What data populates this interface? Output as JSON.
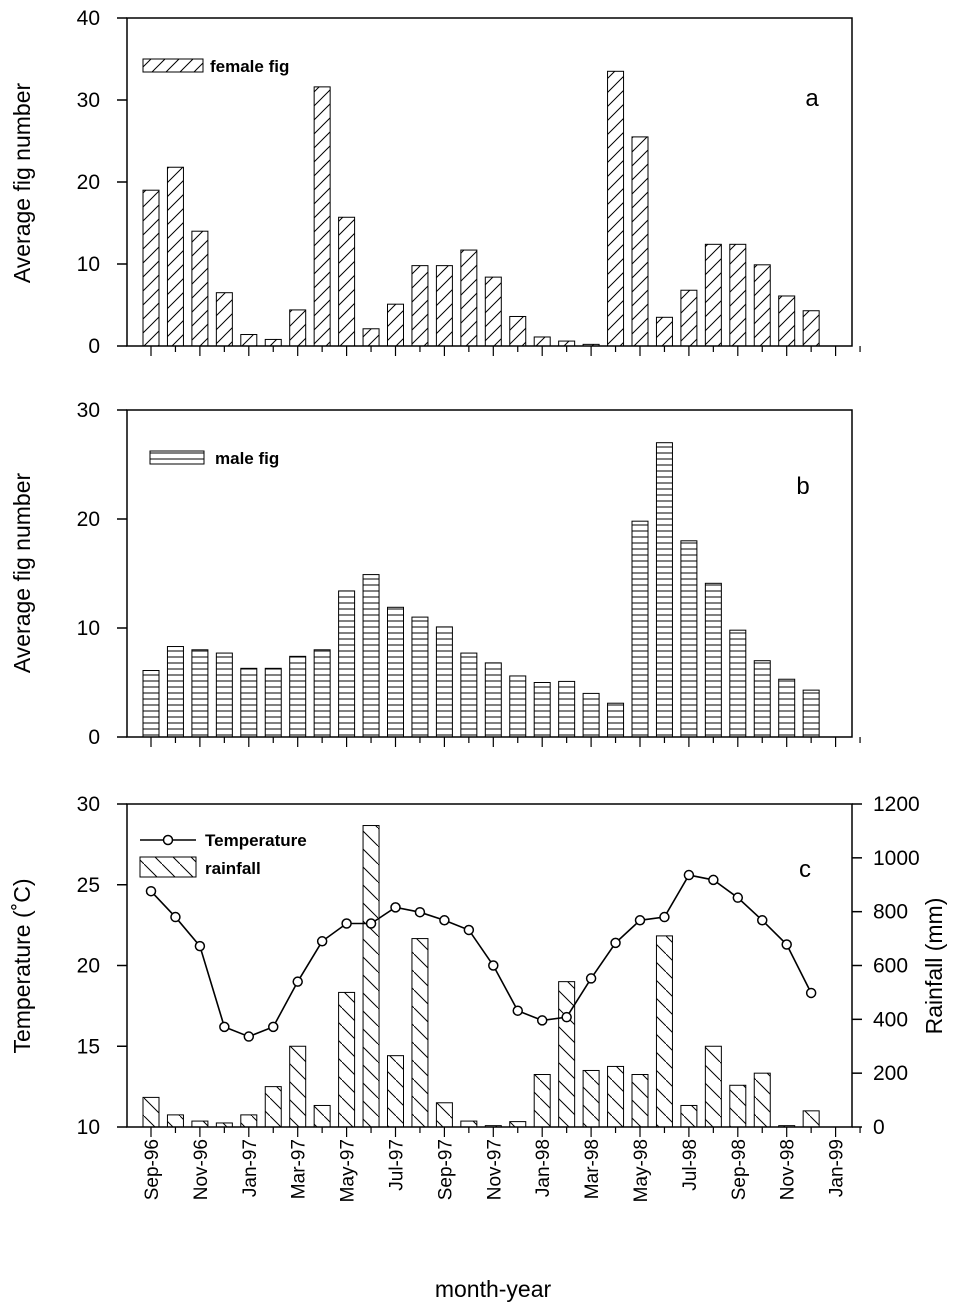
{
  "xlabel": "month-year",
  "tick_labels": [
    "Sep-96",
    "Nov-96",
    "Jan-97",
    "Mar-97",
    "May-97",
    "Jul-97",
    "Sep-97",
    "Nov-97",
    "Jan-98",
    "Mar-98",
    "May-98",
    "Jul-98",
    "Sep-98",
    "Nov-98",
    "Jan-99"
  ],
  "chart_data": [
    {
      "type": "bar",
      "panel": "a",
      "ylabel": "Average fig number",
      "ylim": [
        0,
        40
      ],
      "yticks": [
        0,
        10,
        20,
        30,
        40
      ],
      "series": [
        {
          "name": "female fig",
          "pattern": "diagonal-hatch",
          "values": [
            19,
            21.8,
            14,
            6.5,
            1.4,
            0.8,
            4.4,
            31.6,
            15.7,
            2.1,
            5.1,
            9.8,
            9.8,
            11.7,
            8.4,
            3.6,
            1.1,
            0.6,
            0.2,
            33.5,
            25.5,
            3.5,
            6.8,
            12.4,
            12.4,
            9.9,
            6.1,
            4.3
          ]
        }
      ]
    },
    {
      "type": "bar",
      "panel": "b",
      "ylabel": "Average fig number",
      "ylim": [
        0,
        30
      ],
      "yticks": [
        0,
        10,
        20,
        30
      ],
      "series": [
        {
          "name": "male fig",
          "pattern": "horizontal-lines",
          "values": [
            6.1,
            8.3,
            8,
            7.7,
            6.3,
            6.3,
            7.4,
            8,
            13.4,
            14.9,
            11.9,
            11,
            10.1,
            7.7,
            6.8,
            5.6,
            5,
            5.1,
            4,
            3.1,
            19.8,
            27,
            18,
            14.1,
            9.8,
            7,
            5.3,
            4.3
          ]
        }
      ]
    },
    {
      "type": "bar+line",
      "panel": "c",
      "ylabel": "Temperature (˚C)",
      "ylabel_right": "Rainfall (mm)",
      "ylim": [
        10,
        30
      ],
      "yticks": [
        10,
        15,
        20,
        25,
        30
      ],
      "ylim_right": [
        0,
        1200
      ],
      "yticks_right": [
        0,
        200,
        400,
        600,
        800,
        1000,
        1200
      ],
      "series": [
        {
          "name": "Temperature",
          "type": "line",
          "marker": "open-circle",
          "axis": "left",
          "values": [
            24.6,
            23.0,
            21.2,
            16.2,
            15.6,
            16.2,
            19.0,
            21.5,
            22.6,
            22.6,
            23.6,
            23.3,
            22.8,
            22.2,
            20.0,
            17.2,
            16.6,
            16.8,
            19.2,
            21.4,
            22.8,
            23.0,
            25.6,
            25.3,
            24.2,
            22.8,
            21.3,
            18.3
          ]
        },
        {
          "name": "rainfall",
          "type": "bar",
          "pattern": "back-diagonal-hatch",
          "axis": "right",
          "values": [
            110,
            45,
            22,
            15,
            45,
            150,
            300,
            80,
            500,
            1120,
            265,
            700,
            90,
            22,
            5,
            20,
            195,
            540,
            210,
            225,
            195,
            710,
            80,
            300,
            155,
            200,
            5,
            60
          ]
        }
      ]
    }
  ],
  "legend": {
    "female": "female fig",
    "male": "male fig",
    "temperature": "Temperature",
    "rainfall": "rainfall"
  },
  "panels": {
    "a": {
      "letter": "a"
    },
    "b": {
      "letter": "b"
    },
    "c": {
      "letter": "c"
    }
  }
}
